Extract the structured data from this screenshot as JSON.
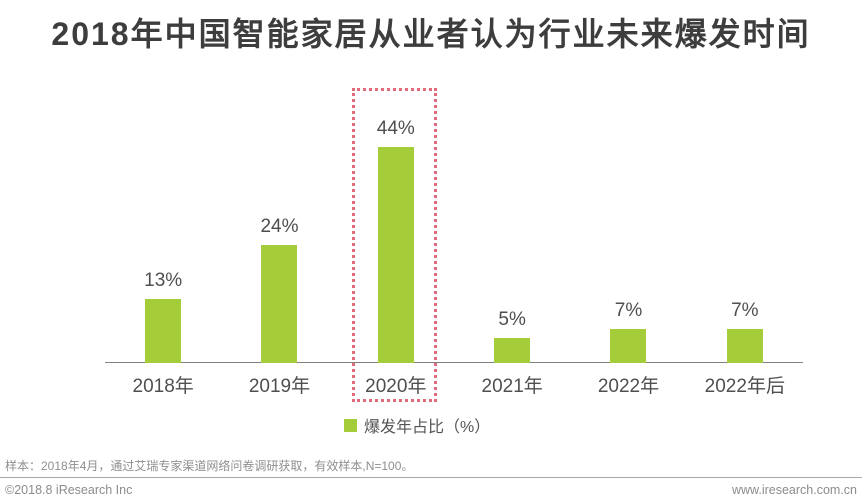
{
  "title": "2018年中国智能家居从业者认为行业未来爆发时间",
  "chart_data": {
    "type": "bar",
    "categories": [
      "2018年",
      "2019年",
      "2020年",
      "2021年",
      "2022年",
      "2022年后"
    ],
    "values": [
      13,
      24,
      44,
      5,
      7,
      7
    ],
    "value_labels": [
      "13%",
      "24%",
      "44%",
      "5%",
      "7%",
      "7%"
    ],
    "series_name": "爆发年占比（%）",
    "highlight_index": 2,
    "highlighted_category": "2020年",
    "title": "2018年中国智能家居从业者认为行业未来爆发时间",
    "xlabel": "",
    "ylabel": "",
    "ylim": [
      0,
      50
    ],
    "grid": false,
    "legend_position": "bottom-center",
    "bar_color": "#a5cd39",
    "highlight_box_color": "#e0697a"
  },
  "legend": {
    "label": "爆发年占比（%）",
    "swatch_color": "#a5cd39"
  },
  "footer": {
    "note": "样本：2018年4月，通过艾瑞专家渠道网络问卷调研获取，有效样本,N=100。",
    "copyright": "©2018.8 iResearch Inc",
    "website": "www.iresearch.com.cn"
  },
  "colors": {
    "title_text": "#3d3d3d",
    "label_text": "#4f4f4f",
    "axis_line": "#808080",
    "footer_text": "#8c8c8c",
    "background": "#ffffff"
  }
}
